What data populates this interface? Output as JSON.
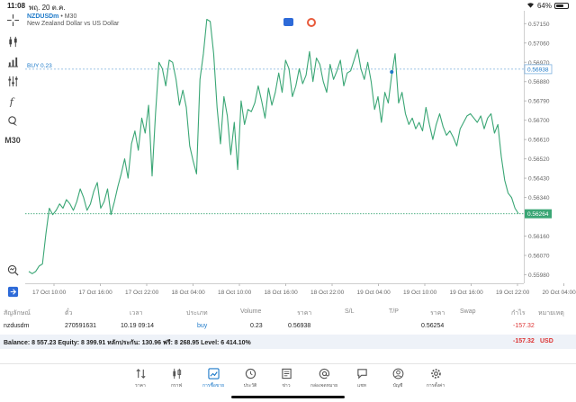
{
  "status": {
    "time": "11:08",
    "date": "พฤ. 20 ต.ค.",
    "battery": "64%",
    "battery_level": 0.64
  },
  "symbol": {
    "code": "NZDUSDm",
    "timeframe_suffix": " • M30",
    "description": "New Zealand Dollar vs US Dollar"
  },
  "left_tools": {
    "timeframe": "M30"
  },
  "chart_data": {
    "type": "line",
    "color": "#3aa675",
    "price_axis": [
      "0.57150",
      "0.57060",
      "0.56970",
      "0.56880",
      "0.56790",
      "0.56700",
      "0.56610",
      "0.56520",
      "0.56430",
      "0.56340",
      "0.56160",
      "0.56070",
      "0.55980"
    ],
    "price_axis_values": [
      0.5715,
      0.5706,
      0.5697,
      0.5688,
      0.5679,
      0.567,
      0.5661,
      0.5652,
      0.5643,
      0.5634,
      0.5616,
      0.5607,
      0.5598
    ],
    "time_axis": [
      "17 Oct 10:00",
      "17 Oct 16:00",
      "17 Oct 22:00",
      "18 Oct 04:00",
      "18 Oct 10:00",
      "18 Oct 16:00",
      "18 Oct 22:00",
      "19 Oct 04:00",
      "19 Oct 10:00",
      "19 Oct 16:00",
      "19 Oct 22:00",
      "20 Oct 04:00"
    ],
    "ylim": [
      0.5594,
      0.5721
    ],
    "buy_line": {
      "label": "BUY 0.23",
      "price": 0.56938,
      "price_label": "0.56938",
      "color": "#7db0de"
    },
    "bid_line": {
      "price": 0.56264,
      "price_label": "0.56264",
      "color": "#3aa675"
    },
    "marker": {
      "index": 106,
      "price": 0.56925
    },
    "values": [
      0.55995,
      0.55985,
      0.55995,
      0.5602,
      0.5603,
      0.5617,
      0.5629,
      0.5626,
      0.5628,
      0.5631,
      0.5629,
      0.5633,
      0.5631,
      0.5628,
      0.5632,
      0.5638,
      0.5634,
      0.5628,
      0.5631,
      0.5637,
      0.5641,
      0.5629,
      0.5632,
      0.5638,
      0.5626,
      0.5632,
      0.5639,
      0.5645,
      0.5652,
      0.5643,
      0.5659,
      0.5665,
      0.5656,
      0.5671,
      0.5664,
      0.5677,
      0.5644,
      0.5673,
      0.5697,
      0.5694,
      0.5686,
      0.5698,
      0.5697,
      0.5689,
      0.5677,
      0.5684,
      0.5676,
      0.5658,
      0.5651,
      0.5645,
      0.5689,
      0.5701,
      0.5717,
      0.5716,
      0.5701,
      0.5676,
      0.5659,
      0.5681,
      0.5672,
      0.5654,
      0.5669,
      0.5647,
      0.5679,
      0.5668,
      0.5675,
      0.5674,
      0.5678,
      0.5686,
      0.5679,
      0.5671,
      0.5685,
      0.5677,
      0.5683,
      0.5692,
      0.5683,
      0.5698,
      0.5694,
      0.5681,
      0.5686,
      0.5694,
      0.5687,
      0.5691,
      0.5702,
      0.5688,
      0.5699,
      0.5696,
      0.5688,
      0.5683,
      0.5696,
      0.5689,
      0.5693,
      0.5698,
      0.5686,
      0.5692,
      0.5693,
      0.5698,
      0.5703,
      0.5694,
      0.5689,
      0.5697,
      0.5688,
      0.5675,
      0.5681,
      0.5669,
      0.5683,
      0.5678,
      0.5691,
      0.5701,
      0.5678,
      0.5683,
      0.5673,
      0.5668,
      0.5671,
      0.5666,
      0.5669,
      0.5665,
      0.5676,
      0.5668,
      0.5661,
      0.5668,
      0.5673,
      0.5667,
      0.5663,
      0.5665,
      0.5662,
      0.5658,
      0.5666,
      0.5669,
      0.5672,
      0.5673,
      0.5671,
      0.5669,
      0.5672,
      0.5666,
      0.5671,
      0.5673,
      0.5664,
      0.5668,
      0.5653,
      0.5642,
      0.5636,
      0.5634,
      0.5629,
      0.56265
    ]
  },
  "trades": {
    "headers": [
      "สัญลักษณ์",
      "ตั๋ว",
      "เวลา",
      "ประเภท",
      "Volume",
      "ราคา",
      "S/L",
      "T/P",
      "ราคา",
      "Swap",
      "กำไร",
      "หมายเหตุ"
    ],
    "row": {
      "symbol": "nzdusdm",
      "ticket": "270591631",
      "time": "10.19 09:14",
      "type": "buy",
      "volume": "0.23",
      "open_price": "0.56938",
      "sl": "",
      "tp": "",
      "price": "0.56254",
      "swap": "",
      "profit": "-157.32",
      "comment": ""
    }
  },
  "balance": {
    "text": "Balance: 8 557.23 Equity: 8 399.91 หลักประกัน: 130.96 ฟรี: 8 268.95 Level: 6 414.10%",
    "profit": "-157.32",
    "currency": "USD"
  },
  "tabs": [
    {
      "label": "ราคา",
      "icon": "quotes-arrows-icon",
      "active": false
    },
    {
      "label": "กราฟ",
      "icon": "candles-icon",
      "active": false
    },
    {
      "label": "การซื้อขาย",
      "icon": "trade-chart-icon",
      "active": true
    },
    {
      "label": "ประวัติ",
      "icon": "history-clock-icon",
      "active": false
    },
    {
      "label": "ข่าว",
      "icon": "news-book-icon",
      "active": false
    },
    {
      "label": "กล่องจดหมาย",
      "icon": "mailbox-at-icon",
      "active": false
    },
    {
      "label": "แชท",
      "icon": "chat-bubble-icon",
      "active": false
    },
    {
      "label": "บัญชี",
      "icon": "account-user-icon",
      "active": false
    },
    {
      "label": "การตั้งค่า",
      "icon": "settings-gear-icon",
      "active": false
    }
  ]
}
